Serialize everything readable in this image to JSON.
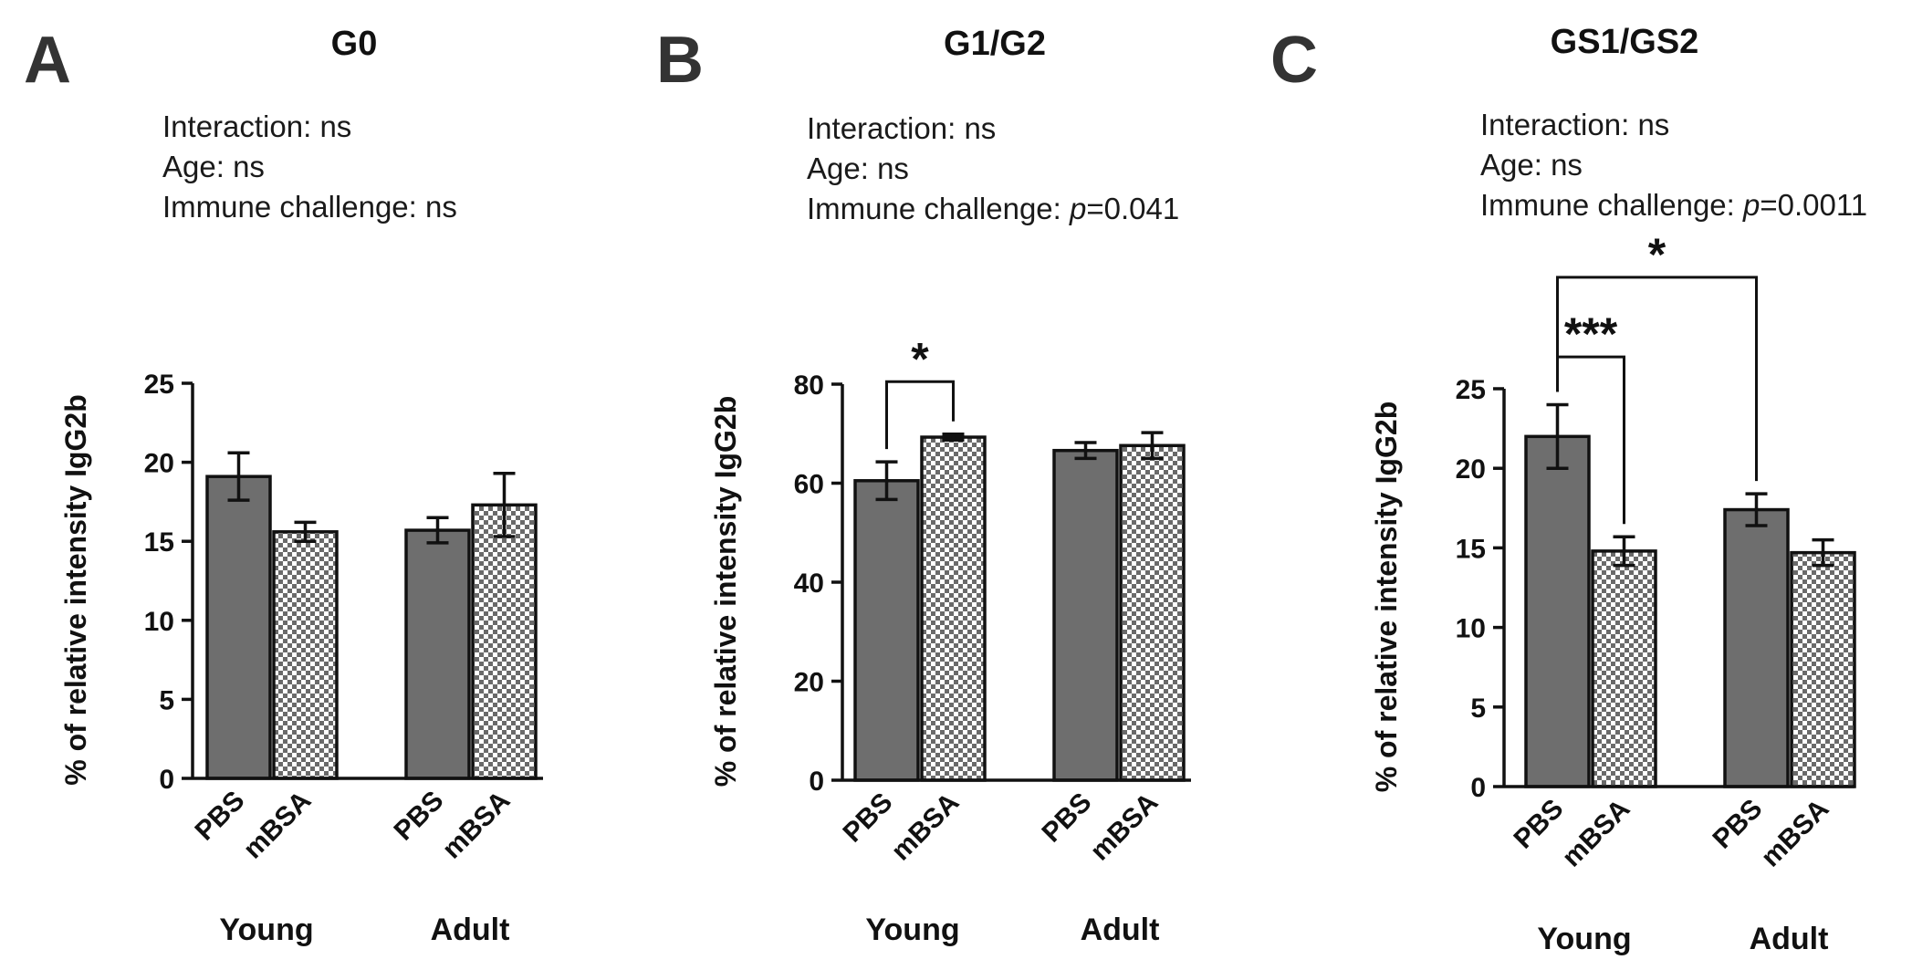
{
  "chart_data": [
    {
      "panel": "A",
      "type": "bar",
      "title": "G0",
      "stats": [
        {
          "prefix": "Interaction: ",
          "italic": "",
          "suffix": "ns"
        },
        {
          "prefix": "Age: ",
          "italic": "",
          "suffix": "ns"
        },
        {
          "prefix": "Immune challenge: ",
          "italic": "",
          "suffix": "ns"
        }
      ],
      "ylabel": "% of relative intensity IgG2b",
      "ylim": [
        0,
        25
      ],
      "yticks": [
        0,
        5,
        10,
        15,
        20,
        25
      ],
      "groups": [
        {
          "name": "Young",
          "bars": [
            {
              "label": "PBS",
              "pattern": "solid",
              "value": 19.1,
              "error": 1.5
            },
            {
              "label": "mBSA",
              "pattern": "checker",
              "value": 15.6,
              "error": 0.6
            }
          ]
        },
        {
          "name": "Adult",
          "bars": [
            {
              "label": "PBS",
              "pattern": "solid",
              "value": 15.7,
              "error": 0.8
            },
            {
              "label": "mBSA",
              "pattern": "checker",
              "value": 17.3,
              "error": 2.0
            }
          ]
        }
      ],
      "significance": []
    },
    {
      "panel": "B",
      "type": "bar",
      "title": "G1/G2",
      "stats": [
        {
          "prefix": "Interaction: ",
          "italic": "",
          "suffix": "ns"
        },
        {
          "prefix": "Age: ",
          "italic": "",
          "suffix": "ns"
        },
        {
          "prefix": "Immune challenge: ",
          "italic": "p",
          "suffix": "=0.041"
        }
      ],
      "ylabel": "% of relative intensity IgG2b",
      "ylim": [
        0,
        80
      ],
      "yticks": [
        0,
        20,
        40,
        60,
        80
      ],
      "groups": [
        {
          "name": "Young",
          "bars": [
            {
              "label": "PBS",
              "pattern": "solid",
              "value": 60.5,
              "error": 3.8
            },
            {
              "label": "mBSA",
              "pattern": "checker",
              "value": 69.3,
              "error": 0.6
            }
          ]
        },
        {
          "name": "Adult",
          "bars": [
            {
              "label": "PBS",
              "pattern": "solid",
              "value": 66.6,
              "error": 1.6
            },
            {
              "label": "mBSA",
              "pattern": "checker",
              "value": 67.6,
              "error": 2.6
            }
          ]
        }
      ],
      "significance": [
        {
          "from": [
            0,
            0
          ],
          "to": [
            0,
            1
          ],
          "label": "*",
          "at": 80.5
        }
      ]
    },
    {
      "panel": "C",
      "type": "bar",
      "title": "GS1/GS2",
      "stats": [
        {
          "prefix": "Interaction: ",
          "italic": "",
          "suffix": "ns"
        },
        {
          "prefix": "Age: ",
          "italic": "",
          "suffix": "ns"
        },
        {
          "prefix": "Immune challenge: ",
          "italic": "p",
          "suffix": "=0.0011"
        }
      ],
      "ylabel": "% of relative intensity IgG2b",
      "ylim": [
        0,
        25
      ],
      "yticks": [
        0,
        5,
        10,
        15,
        20,
        25
      ],
      "groups": [
        {
          "name": "Young",
          "bars": [
            {
              "label": "PBS",
              "pattern": "solid",
              "value": 22.0,
              "error": 2.0
            },
            {
              "label": "mBSA",
              "pattern": "checker",
              "value": 14.8,
              "error": 0.9
            }
          ]
        },
        {
          "name": "Adult",
          "bars": [
            {
              "label": "PBS",
              "pattern": "solid",
              "value": 17.4,
              "error": 1.0
            },
            {
              "label": "mBSA",
              "pattern": "checker",
              "value": 14.7,
              "error": 0.8
            }
          ]
        }
      ],
      "significance": [
        {
          "from": [
            0,
            0
          ],
          "to": [
            0,
            1
          ],
          "label": "***",
          "at": 27.0
        },
        {
          "from": [
            0,
            0
          ],
          "to": [
            1,
            0
          ],
          "label": "*",
          "at": 32.0
        }
      ]
    }
  ]
}
